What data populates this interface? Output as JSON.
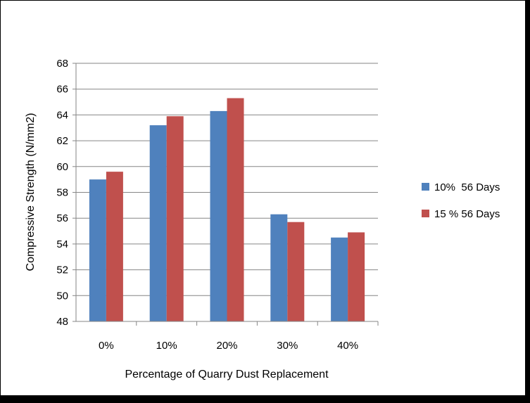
{
  "chart_data": {
    "type": "bar",
    "title": "",
    "xlabel": "Percentage of Quarry Dust Replacement",
    "ylabel": "Compressive Strength (N/mm2)",
    "categories": [
      "0%",
      "10%",
      "20%",
      "30%",
      "40%"
    ],
    "series": [
      {
        "name": "10%  56 Days",
        "color": "#4F81BD",
        "values": [
          59.0,
          63.2,
          64.3,
          56.3,
          54.5
        ]
      },
      {
        "name": "15 % 56 Days",
        "color": "#C0504D",
        "values": [
          59.6,
          63.9,
          65.3,
          55.7,
          54.9
        ]
      }
    ],
    "ylim": [
      48,
      68
    ],
    "yticks": [
      "48",
      "50",
      "52",
      "54",
      "56",
      "58",
      "60",
      "62",
      "64",
      "66",
      "68"
    ],
    "grid": true,
    "legend_position": "right"
  }
}
